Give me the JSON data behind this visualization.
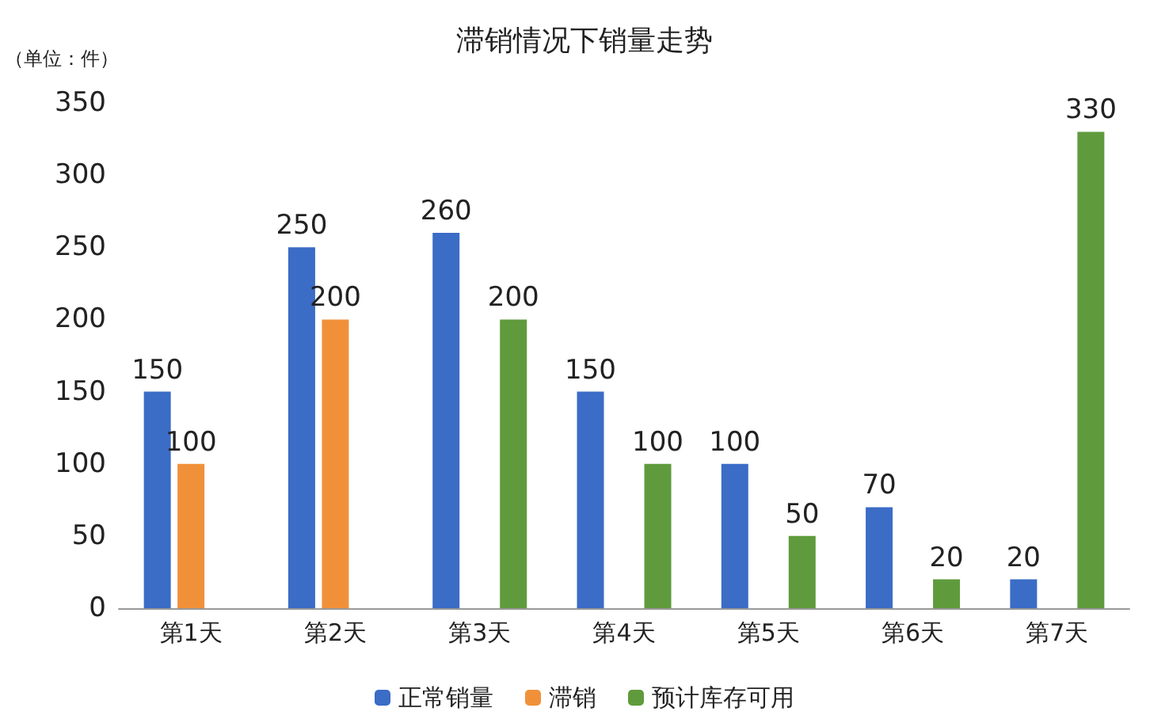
{
  "chart_data": {
    "type": "bar",
    "title": "滞销情况下销量走势",
    "ylabel": "（单位：件）",
    "categories": [
      "第1天",
      "第2天",
      "第3天",
      "第4天",
      "第5天",
      "第6天",
      "第7天"
    ],
    "series": [
      {
        "name": "正常销量",
        "color": "#3b6cc6",
        "values": [
          150,
          250,
          260,
          150,
          100,
          70,
          20
        ]
      },
      {
        "name": "滞销",
        "color": "#f0913a",
        "values": [
          100,
          200,
          null,
          null,
          null,
          null,
          null
        ]
      },
      {
        "name": "预计库存可用",
        "color": "#5f9b3c",
        "values": [
          null,
          null,
          200,
          100,
          50,
          20,
          330
        ]
      }
    ],
    "ylim": [
      0,
      350
    ],
    "yticks": [
      0,
      50,
      100,
      150,
      200,
      250,
      300,
      350
    ],
    "grid": false,
    "legend": "bottom",
    "data_labels": true
  }
}
